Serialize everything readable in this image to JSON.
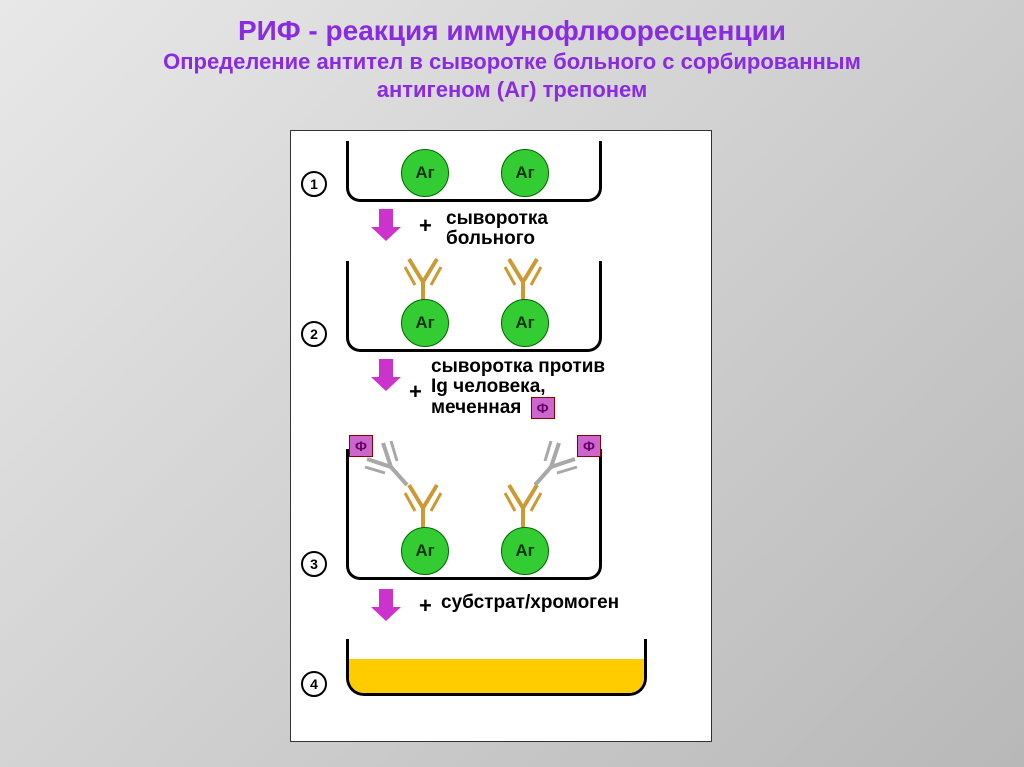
{
  "title": {
    "main": "РИФ - реакция иммунофлюоресценции",
    "sub1": "Определение антител в сыворотке больного с сорбированным",
    "sub2": "антигеном (Аг) трепонем",
    "color": "#8a2be2",
    "main_fontsize": 28,
    "sub_fontsize": 22
  },
  "diagram": {
    "background": "#ffffff",
    "border_color": "#333333",
    "well_border": "#000000",
    "antigen": {
      "label": "Аг",
      "fill": "#33cc33",
      "text_color": "#003300",
      "diameter": 46
    },
    "antibody": {
      "primary_color": "#cc9933",
      "secondary_color": "#a8a8a8"
    },
    "arrow": {
      "fill": "#cc33cc",
      "stem_w": 14,
      "stem_h": 18,
      "head_w": 30,
      "head_h": 14
    },
    "phi": {
      "label": "Ф",
      "fill": "#cc66cc",
      "text_color": "#660066"
    },
    "result": {
      "fill": "#ffcc00",
      "height": 34
    },
    "steps": [
      {
        "num": "1",
        "label_line1": "сыворотка",
        "label_line2": "больного",
        "plus": "+"
      },
      {
        "num": "2",
        "label_line1": "сыворотка против",
        "label_line2": "Ig человека,",
        "label_line3": "меченная",
        "plus": "+"
      },
      {
        "num": "3",
        "label_line1": "субстрат/хромоген",
        "plus": "+"
      },
      {
        "num": "4"
      }
    ],
    "label_fontsize": 19,
    "label_color": "#000000"
  }
}
